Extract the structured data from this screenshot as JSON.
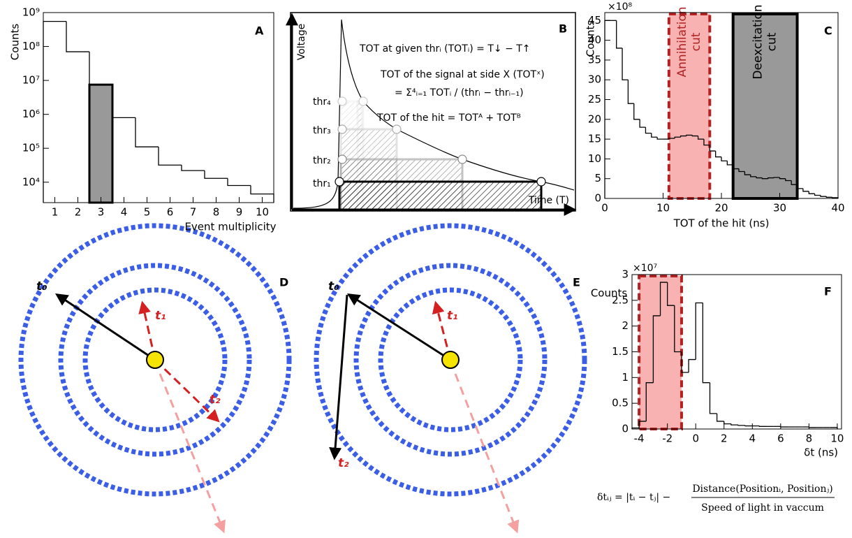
{
  "chart_data": [
    {
      "type": "histogram",
      "panel": "A",
      "y_label": "Counts",
      "x_label": "Event multiplicity",
      "log_y": true,
      "bins": [
        0.5,
        1.5,
        2.5,
        3.5,
        4.5,
        5.5,
        6.5,
        7.5,
        8.5,
        9.5,
        10.5
      ],
      "counts": [
        550000000,
        70000000,
        7500000,
        800000,
        110000,
        32000,
        22000,
        13000,
        8000,
        4500
      ],
      "color": "#000000",
      "highlight_x": 3,
      "highlight_color": "#999999",
      "xlim": [
        0.5,
        10.5
      ],
      "xticks": [
        1,
        2,
        3,
        4,
        5,
        6,
        7,
        8,
        9,
        10
      ],
      "ylim": [
        2500,
        1000000000
      ],
      "yticks": [
        {
          "value": 10000,
          "label": "10⁴"
        },
        {
          "value": 100000,
          "label": "10⁵"
        },
        {
          "value": 1000000,
          "label": "10⁶"
        },
        {
          "value": 10000000,
          "label": "10⁷"
        },
        {
          "value": 100000000,
          "label": "10⁸"
        },
        {
          "value": 1000000000,
          "label": "10⁹"
        }
      ]
    },
    {
      "type": "histogram",
      "panel": "C",
      "y_label": "Counts",
      "x_label": "TOT of the hit (ns)",
      "multiplier": "×10⁸",
      "bins": [
        0,
        1,
        2,
        3,
        4,
        5,
        6,
        7,
        8,
        9,
        10,
        11,
        12,
        13,
        14,
        15,
        16,
        17,
        18,
        19,
        20,
        21,
        22,
        23,
        24,
        25,
        26,
        27,
        28,
        29,
        30,
        31,
        32,
        33,
        34,
        35,
        36,
        37,
        38,
        39,
        40
      ],
      "counts": [
        45,
        45,
        38,
        30,
        24,
        20,
        18,
        16.5,
        15.5,
        15,
        15,
        15.2,
        15.5,
        15.8,
        16,
        15.8,
        15,
        13.5,
        12,
        10.5,
        9.5,
        8.5,
        7.5,
        6.8,
        6,
        5.5,
        5.2,
        5,
        5.2,
        5.3,
        5,
        4.5,
        3.5,
        2.5,
        1.8,
        1.2,
        0.8,
        0.5,
        0.3,
        0.2
      ],
      "color": "#000000",
      "regions": [
        {
          "label_lines": [
            "Annihilation",
            "cut"
          ],
          "range": [
            11,
            18
          ],
          "color": "#f7a5a5",
          "border": "#b22222",
          "dashed": true
        },
        {
          "label_lines": [
            "Deexcitation",
            "cut"
          ],
          "range": [
            22,
            33
          ],
          "color": "#999999",
          "border": "#000000",
          "dashed": false
        }
      ],
      "xlim": [
        0,
        40
      ],
      "xticks": [
        0,
        10,
        20,
        30,
        40
      ],
      "ylim": [
        0,
        47
      ],
      "yticks": [
        0,
        5,
        10,
        15,
        20,
        25,
        30,
        35,
        40,
        45
      ]
    },
    {
      "type": "histogram",
      "panel": "F",
      "y_label": "Counts",
      "x_label": "δt (ns)",
      "multiplier": "×10⁷",
      "bins": [
        -4.5,
        -4,
        -3.5,
        -3,
        -2.5,
        -2,
        -1.5,
        -1,
        -0.5,
        0,
        0.5,
        1,
        1.5,
        2,
        2.5,
        3,
        3.5,
        4,
        4.5,
        5,
        5.5,
        6,
        6.5,
        7,
        7.5,
        8,
        8.5,
        9,
        9.5,
        10
      ],
      "counts": [
        0.02,
        0.15,
        0.9,
        2.2,
        2.85,
        2.4,
        1.5,
        1.1,
        1.35,
        2.45,
        0.9,
        0.3,
        0.15,
        0.1,
        0.08,
        0.07,
        0.06,
        0.06,
        0.05,
        0.05,
        0.05,
        0.04,
        0.04,
        0.04,
        0.04,
        0.03,
        0.03,
        0.03,
        0.03
      ],
      "color": "#000000",
      "regions": [
        {
          "range": [
            -4,
            -1
          ],
          "color": "#f7a5a5",
          "border": "#b22222",
          "dashed": true
        }
      ],
      "xlim": [
        -4.5,
        10.3
      ],
      "xticks": [
        -4,
        -2,
        0,
        2,
        4,
        6,
        8,
        10
      ],
      "ylim": [
        0,
        3
      ],
      "yticks": [
        0,
        0.5,
        1,
        1.5,
        2,
        2.5,
        3
      ]
    }
  ],
  "diagram_b": {
    "panel": "B",
    "y_label": "Voltage",
    "x_label": "Time (T)",
    "thresholds": [
      "thr₁",
      "thr₂",
      "thr₃",
      "thr₄"
    ],
    "lines": [
      "TOT at given thrᵢ (TOTᵢ) = T↓ − T↑",
      "TOT of the signal at side X (TOTˣ)",
      "= Σ⁴ᵢ₌₁ TOTᵢ / (thrᵢ − thrᵢ₋₁)",
      "TOT of the hit = TOTᴬ + TOTᴮ"
    ]
  },
  "diagram_d": {
    "panel": "D",
    "labels": [
      "t₀",
      "t₁",
      "t₂"
    ]
  },
  "diagram_e": {
    "panel": "E",
    "labels": [
      "t₀",
      "t₁",
      "t₂"
    ]
  },
  "formula": {
    "left": "δtᵢⱼ = |tᵢ − tⱼ| −",
    "numerator": "Distance(Positionᵢ, Positionⱼ)",
    "denominator": "Speed of light in vaccum"
  }
}
